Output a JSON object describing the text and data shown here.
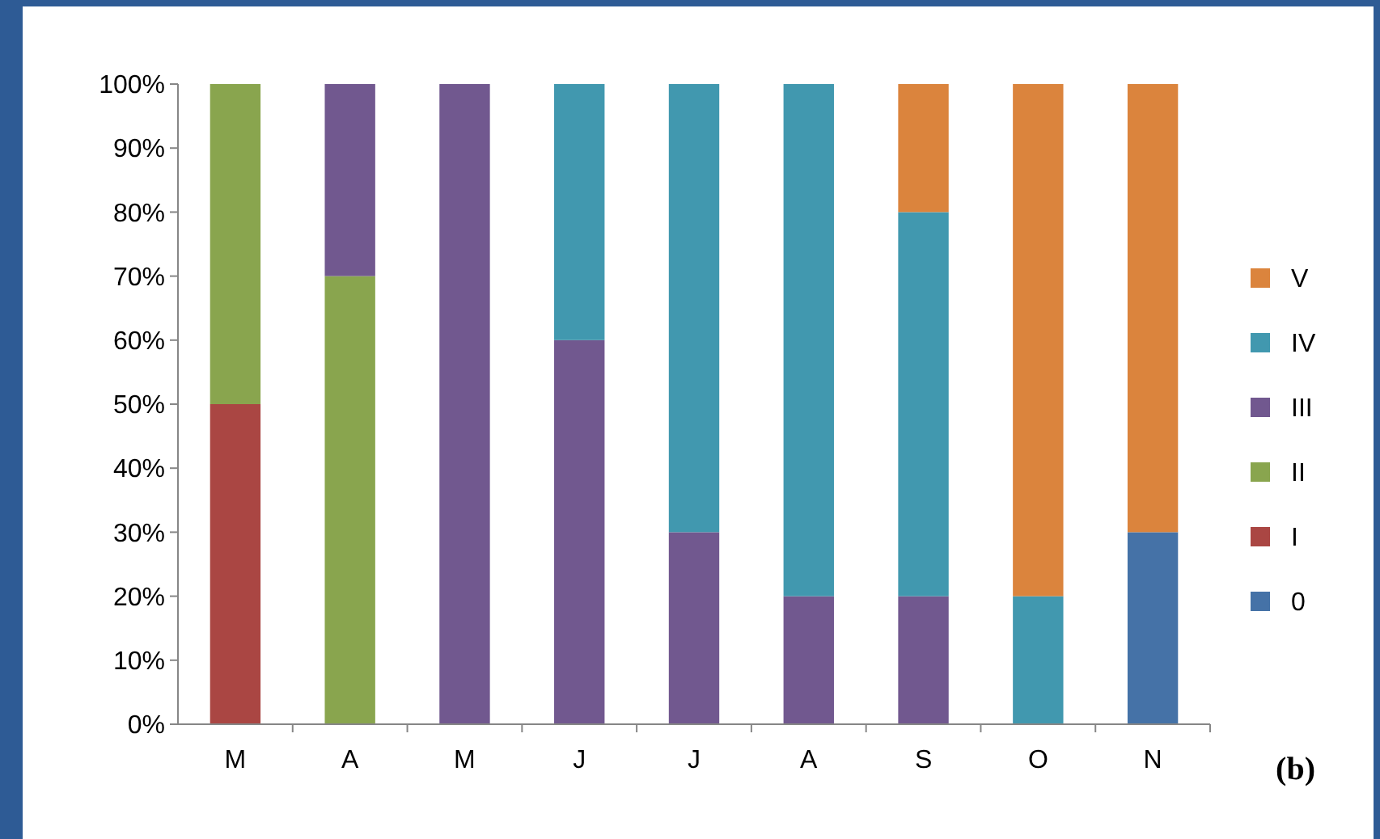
{
  "chart_data": {
    "type": "bar",
    "stacked": true,
    "categories": [
      "M",
      "A",
      "M",
      "J",
      "J",
      "A",
      "S",
      "O",
      "N"
    ],
    "series": [
      {
        "name": "0",
        "color": "#4572a7",
        "values": [
          0,
          0,
          0,
          0,
          0,
          0,
          0,
          0,
          30
        ]
      },
      {
        "name": "I",
        "color": "#aa4643",
        "values": [
          50,
          0,
          0,
          0,
          0,
          0,
          0,
          0,
          0
        ]
      },
      {
        "name": "II",
        "color": "#89a54e",
        "values": [
          50,
          70,
          0,
          0,
          0,
          0,
          0,
          0,
          0
        ]
      },
      {
        "name": "III",
        "color": "#71588f",
        "values": [
          0,
          30,
          100,
          60,
          30,
          20,
          20,
          0,
          0
        ]
      },
      {
        "name": "IV",
        "color": "#4198af",
        "values": [
          0,
          0,
          0,
          40,
          70,
          80,
          60,
          20,
          0
        ]
      },
      {
        "name": "V",
        "color": "#db843d",
        "values": [
          0,
          0,
          0,
          0,
          0,
          0,
          20,
          80,
          70
        ]
      }
    ],
    "ylim": [
      0,
      100
    ],
    "yticks": [
      {
        "value": 0,
        "label": "0%"
      },
      {
        "value": 10,
        "label": "10%"
      },
      {
        "value": 20,
        "label": "20%"
      },
      {
        "value": 30,
        "label": "30%"
      },
      {
        "value": 40,
        "label": "40%"
      },
      {
        "value": 50,
        "label": "50%"
      },
      {
        "value": 60,
        "label": "60%"
      },
      {
        "value": 70,
        "label": "70%"
      },
      {
        "value": 80,
        "label": "80%"
      },
      {
        "value": 90,
        "label": "90%"
      },
      {
        "value": 100,
        "label": "100%"
      }
    ],
    "grid": false,
    "legend": "right",
    "annotations": [
      "(b)"
    ]
  }
}
